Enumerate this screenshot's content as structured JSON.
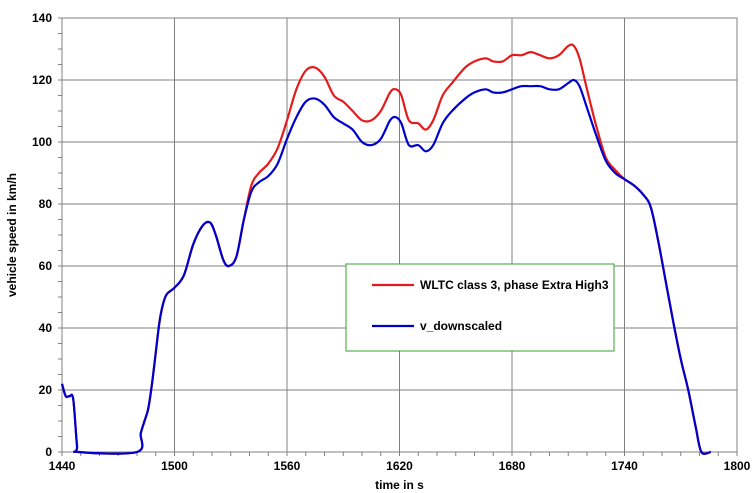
{
  "chart_data": {
    "type": "line",
    "xlabel": "time in s",
    "ylabel": "vehicle speed in km/h",
    "xlim": [
      1440,
      1800
    ],
    "ylim": [
      0,
      140
    ],
    "x_ticks": [
      1440,
      1500,
      1560,
      1620,
      1680,
      1740,
      1800
    ],
    "y_ticks": [
      0,
      20,
      40,
      60,
      80,
      100,
      120,
      140
    ],
    "grid": true,
    "legend_position": "center-right",
    "series": [
      {
        "name": "WLTC class 3, phase Extra High3",
        "color": "#e41a1c",
        "points": [
          [
            1440,
            22
          ],
          [
            1442,
            18
          ],
          [
            1444,
            18
          ],
          [
            1446,
            17
          ],
          [
            1448,
            2
          ],
          [
            1449,
            0
          ],
          [
            1480,
            0
          ],
          [
            1482,
            6
          ],
          [
            1484,
            10
          ],
          [
            1486,
            14
          ],
          [
            1488,
            22
          ],
          [
            1490,
            32
          ],
          [
            1492,
            42
          ],
          [
            1494,
            48
          ],
          [
            1496,
            51
          ],
          [
            1500,
            53
          ],
          [
            1505,
            57
          ],
          [
            1510,
            67
          ],
          [
            1515,
            73
          ],
          [
            1519,
            74
          ],
          [
            1522,
            70
          ],
          [
            1526,
            62
          ],
          [
            1529,
            60
          ],
          [
            1533,
            63
          ],
          [
            1537,
            75
          ],
          [
            1541,
            86
          ],
          [
            1545,
            90
          ],
          [
            1550,
            93
          ],
          [
            1555,
            98
          ],
          [
            1560,
            107
          ],
          [
            1565,
            117
          ],
          [
            1570,
            123
          ],
          [
            1575,
            124
          ],
          [
            1580,
            121
          ],
          [
            1585,
            115
          ],
          [
            1590,
            113
          ],
          [
            1595,
            110
          ],
          [
            1600,
            107
          ],
          [
            1605,
            107
          ],
          [
            1610,
            110
          ],
          [
            1615,
            116
          ],
          [
            1618,
            117
          ],
          [
            1621,
            115
          ],
          [
            1625,
            107
          ],
          [
            1630,
            106
          ],
          [
            1634,
            104
          ],
          [
            1638,
            107
          ],
          [
            1643,
            115
          ],
          [
            1648,
            119
          ],
          [
            1655,
            124
          ],
          [
            1660,
            126
          ],
          [
            1666,
            127
          ],
          [
            1670,
            126
          ],
          [
            1675,
            126
          ],
          [
            1680,
            128
          ],
          [
            1685,
            128
          ],
          [
            1690,
            129
          ],
          [
            1695,
            128
          ],
          [
            1700,
            127
          ],
          [
            1705,
            128
          ],
          [
            1710,
            131
          ],
          [
            1713,
            131
          ],
          [
            1716,
            127
          ],
          [
            1720,
            117
          ],
          [
            1725,
            105
          ],
          [
            1730,
            95
          ],
          [
            1735,
            91
          ],
          [
            1740,
            88
          ],
          [
            1745,
            86
          ],
          [
            1750,
            83
          ],
          [
            1754,
            79
          ],
          [
            1758,
            68
          ],
          [
            1762,
            55
          ],
          [
            1766,
            42
          ],
          [
            1770,
            30
          ],
          [
            1774,
            20
          ],
          [
            1778,
            8
          ],
          [
            1781,
            0
          ],
          [
            1786,
            0
          ]
        ]
      },
      {
        "name": "v_downscaled",
        "color": "#0000cc",
        "points": [
          [
            1440,
            22
          ],
          [
            1442,
            18
          ],
          [
            1444,
            18
          ],
          [
            1446,
            17
          ],
          [
            1448,
            2
          ],
          [
            1449,
            0
          ],
          [
            1480,
            0
          ],
          [
            1482,
            6
          ],
          [
            1484,
            10
          ],
          [
            1486,
            14
          ],
          [
            1488,
            22
          ],
          [
            1490,
            32
          ],
          [
            1492,
            42
          ],
          [
            1494,
            48
          ],
          [
            1496,
            51
          ],
          [
            1500,
            53
          ],
          [
            1505,
            57
          ],
          [
            1510,
            67
          ],
          [
            1515,
            73
          ],
          [
            1519,
            74
          ],
          [
            1522,
            70
          ],
          [
            1526,
            62
          ],
          [
            1529,
            60
          ],
          [
            1533,
            63
          ],
          [
            1537,
            75
          ],
          [
            1541,
            84
          ],
          [
            1545,
            87
          ],
          [
            1550,
            89
          ],
          [
            1555,
            93
          ],
          [
            1560,
            101
          ],
          [
            1565,
            108
          ],
          [
            1570,
            113
          ],
          [
            1575,
            114
          ],
          [
            1580,
            112
          ],
          [
            1585,
            108
          ],
          [
            1590,
            106
          ],
          [
            1595,
            104
          ],
          [
            1600,
            100
          ],
          [
            1605,
            99
          ],
          [
            1610,
            101
          ],
          [
            1615,
            107
          ],
          [
            1618,
            108
          ],
          [
            1621,
            106
          ],
          [
            1625,
            99
          ],
          [
            1630,
            99
          ],
          [
            1634,
            97
          ],
          [
            1638,
            99
          ],
          [
            1643,
            106
          ],
          [
            1648,
            110
          ],
          [
            1655,
            114
          ],
          [
            1660,
            116
          ],
          [
            1666,
            117
          ],
          [
            1670,
            116
          ],
          [
            1675,
            116
          ],
          [
            1680,
            117
          ],
          [
            1685,
            118
          ],
          [
            1690,
            118
          ],
          [
            1695,
            118
          ],
          [
            1700,
            117
          ],
          [
            1705,
            117
          ],
          [
            1710,
            119
          ],
          [
            1713,
            120
          ],
          [
            1716,
            118
          ],
          [
            1720,
            111
          ],
          [
            1725,
            102
          ],
          [
            1730,
            94
          ],
          [
            1735,
            90
          ],
          [
            1740,
            88
          ],
          [
            1745,
            86
          ],
          [
            1750,
            83
          ],
          [
            1754,
            79
          ],
          [
            1758,
            68
          ],
          [
            1762,
            55
          ],
          [
            1766,
            42
          ],
          [
            1770,
            30
          ],
          [
            1774,
            20
          ],
          [
            1778,
            8
          ],
          [
            1781,
            0
          ],
          [
            1786,
            0
          ]
        ]
      }
    ]
  }
}
